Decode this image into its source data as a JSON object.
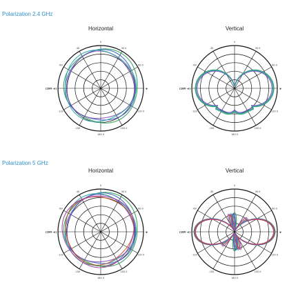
{
  "sections": [
    {
      "title": "Polarization 2.4 GHz"
    },
    {
      "title": "Polarization 5 GHz"
    }
  ],
  "colors": {
    "section_title": "#2f8fc9",
    "series": [
      "#2e9e56",
      "#3b5cc4",
      "#7a4fb8",
      "#2aa6a6",
      "#c7552b",
      "#a23aa0"
    ]
  },
  "chart_data": [
    {
      "type": "polar",
      "title": "Horizontal",
      "group": "Polarization 2.4 GHz",
      "angle_ticks": [
        "0",
        "30  0",
        "60  0",
        "90",
        "120  0",
        "150  0",
        "180  0",
        "-150",
        "-120",
        "(180 -e)",
        "-60",
        "-30"
      ],
      "right_label": "φ",
      "left_label": "(180 -e)",
      "shape": "omni",
      "series_count": 4
    },
    {
      "type": "polar",
      "title": "Vertical",
      "group": "Polarization 2.4 GHz",
      "angle_ticks": [
        "0",
        "30  0",
        "60  0",
        "90",
        "120  0",
        "150  0",
        "180  0",
        "-150",
        "-120",
        "(180 -e)",
        "-60",
        "-30"
      ],
      "right_label": "φ",
      "left_label": "(180 -e)",
      "shape": "figure8",
      "series_count": 4
    },
    {
      "type": "polar",
      "title": "Horizontal",
      "group": "Polarization 5 GHz",
      "angle_ticks": [
        "0",
        "30  0",
        "60  0",
        "90",
        "120  0",
        "150  0",
        "180  0",
        "-150",
        "-120",
        "(180 -e)",
        "-60",
        "-30"
      ],
      "right_label": "φ",
      "left_label": "(180 -e)",
      "shape": "omni",
      "series_count": 6
    },
    {
      "type": "polar",
      "title": "Vertical",
      "group": "Polarization 5 GHz",
      "angle_ticks": [
        "0",
        "30  0",
        "60  0",
        "90",
        "120  0",
        "150  0",
        "180  0",
        "-150",
        "-120",
        "(180 -e)",
        "-60",
        "-30"
      ],
      "right_label": "φ",
      "left_label": "(180 -e)",
      "shape": "multilobe",
      "series_count": 6
    }
  ]
}
